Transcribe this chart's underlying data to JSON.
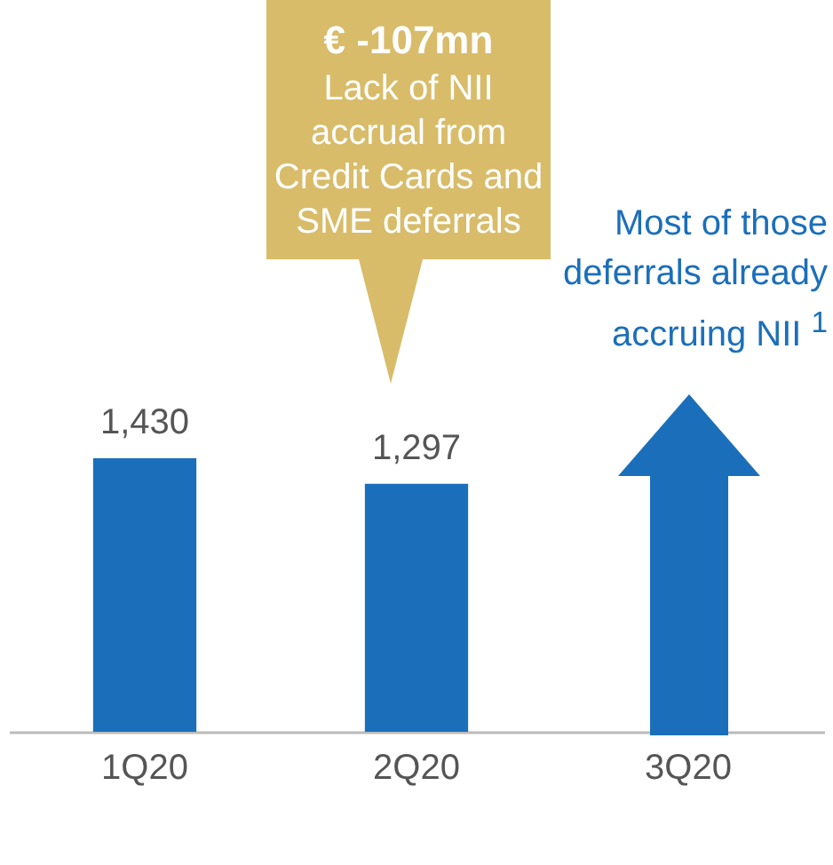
{
  "chart_data": {
    "type": "bar",
    "categories": [
      "1Q20",
      "2Q20",
      "3Q20"
    ],
    "values": [
      1430,
      1297,
      null
    ],
    "value_labels": [
      "1,430",
      "1,297",
      null
    ],
    "color": "#1b6fba",
    "annotations": [
      "€ -107mn",
      "Lack of NII accrual from Credit Cards and SME deferrals",
      "Most of those deferrals already accruing NII $^{1}$"
    ]
  }
}
